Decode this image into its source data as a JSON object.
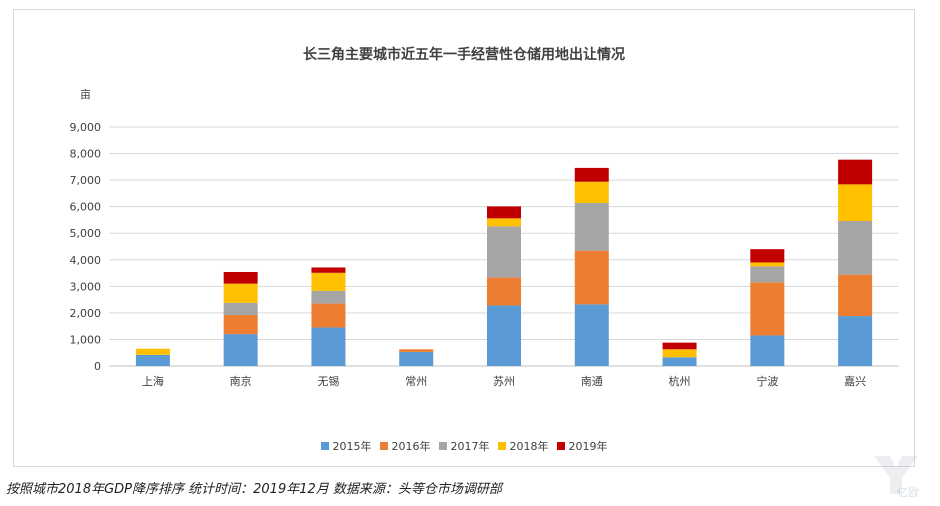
{
  "chart_data": {
    "type": "bar",
    "stacked": true,
    "title": "长三角主要城市近五年一手经营性仓储用地出让情况",
    "ylabel": "亩",
    "xlabel": "",
    "ylim": [
      0,
      9000
    ],
    "yticks": [
      0,
      1000,
      2000,
      3000,
      4000,
      5000,
      6000,
      7000,
      8000,
      9000
    ],
    "ytick_labels": [
      "0",
      "1,000",
      "2,000",
      "3,000",
      "4,000",
      "5,000",
      "6,000",
      "7,000",
      "8,000",
      "9,000"
    ],
    "grid": true,
    "legend_position": "bottom",
    "categories": [
      "上海",
      "南京",
      "无锡",
      "常州",
      "苏州",
      "南通",
      "杭州",
      "宁波",
      "嘉兴"
    ],
    "series": [
      {
        "name": "2015年",
        "color": "#5b9bd5",
        "values": [
          420,
          1200,
          1450,
          530,
          2280,
          2320,
          330,
          1150,
          1880
        ]
      },
      {
        "name": "2016年",
        "color": "#ed7d31",
        "values": [
          0,
          720,
          900,
          100,
          1050,
          2020,
          0,
          2000,
          1560
        ]
      },
      {
        "name": "2017年",
        "color": "#a5a5a5",
        "values": [
          0,
          460,
          480,
          0,
          1930,
          1800,
          0,
          600,
          2020
        ]
      },
      {
        "name": "2018年",
        "color": "#ffc000",
        "values": [
          230,
          720,
          680,
          0,
          300,
          800,
          300,
          150,
          1380
        ]
      },
      {
        "name": "2019年",
        "color": "#c00000",
        "values": [
          0,
          440,
          200,
          0,
          450,
          520,
          250,
          500,
          930
        ]
      }
    ]
  },
  "footnote": "按照城市2018年GDP降序排序  统计时间：2019年12月 数据来源：头等仓市场调研部",
  "watermark_text": "亿欧"
}
